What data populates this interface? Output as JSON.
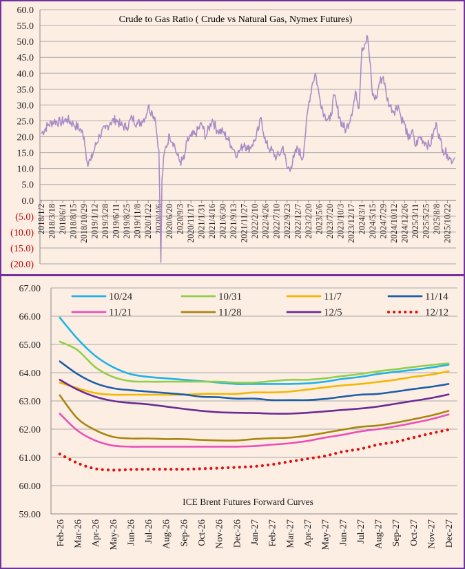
{
  "chart_data": [
    {
      "type": "line",
      "title": "Crude to Gas Ratio ( Crude vs Natural Gas, Nymex Futures)",
      "xlabel": "",
      "ylabel": "",
      "ylim": [
        -20,
        60
      ],
      "y_ticks": [
        "60.0",
        "55.0",
        "50.0",
        "45.0",
        "40.0",
        "35.0",
        "30.0",
        "25.0",
        "20.0",
        "15.0",
        "10.0",
        "5.0",
        "0.0",
        "(5.0)",
        "(10.0)",
        "(15.0)",
        "(20.0)"
      ],
      "x_ticks": [
        "2018/1/2",
        "2018/3/18",
        "2018/6/1",
        "2018/8/15",
        "2018/10/29",
        "2019/1/12",
        "2019/3/28",
        "2019/6/11",
        "2019/8/25",
        "2019/11/8",
        "2020/1/22",
        "2020/4/6",
        "2020/6/20",
        "2020/9/3",
        "2020/11/17",
        "2021/1/31",
        "2021/4/16",
        "2021/6/30",
        "2021/9/13",
        "2021/11/27",
        "2022/2/10",
        "2022/4/26",
        "2022/7/10",
        "2022/9/23",
        "2022/12/7",
        "2023/2/20",
        "2023/5/6",
        "2023/7/20",
        "2023/10/3",
        "2023/12/17",
        "2024/3/1",
        "2024/5/15",
        "2024/7/29",
        "2024/10/12",
        "2024/12/26",
        "2025/3/11",
        "2025/5/25",
        "2025/8/8",
        "2025/10/22"
      ],
      "negative_color": "#c00000",
      "series": [
        {
          "color": "#a98cc6",
          "x": [
            "2018/1/2",
            "2018/2/15",
            "2018/4/1",
            "2018/5/15",
            "2018/7/1",
            "2018/8/15",
            "2018/10/1",
            "2018/10/29",
            "2018/11/20",
            "2018/12/15",
            "2019/1/12",
            "2019/2/15",
            "2019/3/28",
            "2019/5/1",
            "2019/6/11",
            "2019/7/15",
            "2019/8/25",
            "2019/10/1",
            "2019/11/8",
            "2019/12/10",
            "2020/1/10",
            "2020/1/22",
            "2020/2/20",
            "2020/3/10",
            "2020/3/25",
            "2020/4/6",
            "2020/4/20",
            "2020/4/28",
            "2020/5/15",
            "2020/6/20",
            "2020/7/20",
            "2020/8/10",
            "2020/9/3",
            "2020/10/1",
            "2020/10/20",
            "2020/11/17",
            "2020/12/20",
            "2021/1/31",
            "2021/3/1",
            "2021/4/16",
            "2021/5/20",
            "2021/6/30",
            "2021/8/1",
            "2021/9/13",
            "2021/10/10",
            "2021/11/1",
            "2021/11/27",
            "2021/12/20",
            "2022/1/20",
            "2022/2/10",
            "2022/3/10",
            "2022/3/25",
            "2022/4/26",
            "2022/5/30",
            "2022/7/10",
            "2022/8/10",
            "2022/8/25",
            "2022/9/23",
            "2022/10/20",
            "2022/11/10",
            "2022/12/7",
            "2023/1/10",
            "2023/2/1",
            "2023/2/20",
            "2023/3/20",
            "2023/4/10",
            "2023/5/6",
            "2023/6/10",
            "2023/7/20",
            "2023/8/20",
            "2023/9/10",
            "2023/10/3",
            "2023/11/10",
            "2023/12/17",
            "2024/1/20",
            "2024/2/10",
            "2024/3/1",
            "2024/3/20",
            "2024/4/10",
            "2024/4/25",
            "2024/5/15",
            "2024/6/10",
            "2024/7/1",
            "2024/7/29",
            "2024/8/20",
            "2024/9/10",
            "2024/10/12",
            "2024/11/10",
            "2024/12/1",
            "2024/12/26",
            "2025/1/20",
            "2025/2/15",
            "2025/3/11",
            "2025/4/10",
            "2025/5/25",
            "2025/6/20",
            "2025/7/15",
            "2025/8/8",
            "2025/9/1",
            "2025/9/20",
            "2025/10/22",
            "2025/11/10",
            "2025/12/1",
            "2025/12/12"
          ],
          "values": [
            21.0,
            23.5,
            25.0,
            24.5,
            25.5,
            24.0,
            22.5,
            20.0,
            12.0,
            12.5,
            16.5,
            20.5,
            22.5,
            24.5,
            25.5,
            23.5,
            23.0,
            26.0,
            24.0,
            25.0,
            27.0,
            29.5,
            27.5,
            26.0,
            20.0,
            16.0,
            -19.5,
            7.0,
            15.0,
            20.5,
            18.0,
            14.5,
            12.0,
            13.0,
            18.5,
            20.0,
            21.0,
            24.0,
            20.0,
            25.5,
            22.0,
            21.5,
            19.5,
            16.0,
            14.5,
            16.0,
            18.0,
            16.0,
            17.5,
            19.0,
            23.0,
            26.0,
            18.0,
            16.0,
            13.5,
            15.0,
            17.0,
            10.0,
            10.5,
            13.5,
            16.5,
            13.0,
            22.0,
            30.0,
            37.0,
            40.0,
            33.0,
            27.0,
            25.0,
            33.0,
            29.0,
            25.0,
            22.0,
            27.0,
            34.0,
            29.0,
            48.0,
            49.0,
            51.5,
            44.0,
            33.0,
            32.0,
            37.0,
            39.0,
            33.0,
            30.0,
            28.0,
            30.0,
            26.0,
            24.0,
            19.0,
            22.0,
            17.0,
            20.0,
            18.0,
            17.0,
            21.0,
            24.0,
            19.0,
            16.0,
            14.5,
            13.0,
            12.5,
            13.5
          ]
        }
      ]
    },
    {
      "type": "line",
      "title": "ICE Brent Futures Forward Curves",
      "xlabel": "",
      "ylabel": "",
      "ylim": [
        59,
        67
      ],
      "y_ticks": [
        "67.00",
        "66.00",
        "65.00",
        "64.00",
        "63.00",
        "62.00",
        "61.00",
        "60.00",
        "59.00"
      ],
      "categories": [
        "Feb-26",
        "Mar-26",
        "Apr-26",
        "May-26",
        "Jun-26",
        "Jul-26",
        "Aug-26",
        "Sep-26",
        "Oct-26",
        "Nov-26",
        "Dec-26",
        "Jan-27",
        "Feb-27",
        "Mar-27",
        "Apr-27",
        "May-27",
        "Jun-27",
        "Jul-27",
        "Aug-27",
        "Sep-27",
        "Oct-27",
        "Nov-27",
        "Dec-27"
      ],
      "legend_position": "top",
      "series": [
        {
          "name": "10/24",
          "color": "#1fb2e8",
          "style": "solid",
          "values": [
            65.95,
            65.2,
            64.6,
            64.2,
            63.95,
            63.85,
            63.8,
            63.75,
            63.7,
            63.65,
            63.6,
            63.6,
            63.6,
            63.6,
            63.62,
            63.68,
            63.78,
            63.85,
            63.95,
            64.03,
            64.1,
            64.18,
            64.28
          ]
        },
        {
          "name": "10/31",
          "color": "#8fcf4a",
          "style": "solid",
          "values": [
            65.1,
            64.8,
            64.2,
            63.85,
            63.7,
            63.68,
            63.68,
            63.68,
            63.68,
            63.68,
            63.65,
            63.65,
            63.7,
            63.75,
            63.75,
            63.8,
            63.88,
            63.95,
            64.05,
            64.12,
            64.2,
            64.27,
            64.33
          ]
        },
        {
          "name": "11/7",
          "color": "#f2b700",
          "style": "solid",
          "values": [
            63.65,
            63.45,
            63.28,
            63.22,
            63.22,
            63.22,
            63.22,
            63.22,
            63.25,
            63.25,
            63.25,
            63.3,
            63.3,
            63.33,
            63.4,
            63.48,
            63.55,
            63.6,
            63.67,
            63.75,
            63.85,
            63.93,
            64.05
          ]
        },
        {
          "name": "11/14",
          "color": "#1b5fa8",
          "style": "solid",
          "values": [
            64.4,
            63.95,
            63.63,
            63.45,
            63.38,
            63.33,
            63.28,
            63.23,
            63.15,
            63.13,
            63.08,
            63.08,
            63.03,
            63.03,
            63.03,
            63.07,
            63.15,
            63.22,
            63.25,
            63.33,
            63.42,
            63.5,
            63.6
          ]
        },
        {
          "name": "11/21",
          "color": "#ea4fb8",
          "style": "solid",
          "values": [
            62.55,
            61.95,
            61.6,
            61.42,
            61.38,
            61.38,
            61.38,
            61.38,
            61.38,
            61.38,
            61.38,
            61.4,
            61.45,
            61.5,
            61.58,
            61.7,
            61.8,
            61.92,
            62.0,
            62.1,
            62.22,
            62.35,
            62.52
          ]
        },
        {
          "name": "11/28",
          "color": "#a8860e",
          "style": "solid",
          "values": [
            63.2,
            62.38,
            61.97,
            61.73,
            61.67,
            61.67,
            61.65,
            61.65,
            61.62,
            61.6,
            61.6,
            61.65,
            61.68,
            61.7,
            61.77,
            61.87,
            61.98,
            62.08,
            62.13,
            62.23,
            62.35,
            62.48,
            62.65
          ]
        },
        {
          "name": "12/5",
          "color": "#6a2c94",
          "style": "solid",
          "values": [
            63.75,
            63.4,
            63.15,
            63.0,
            62.93,
            62.88,
            62.8,
            62.72,
            62.65,
            62.6,
            62.58,
            62.57,
            62.55,
            62.55,
            62.58,
            62.63,
            62.68,
            62.73,
            62.8,
            62.9,
            63.0,
            63.1,
            63.23
          ]
        },
        {
          "name": "12/12",
          "color": "#e01010",
          "style": "dotted",
          "values": [
            61.12,
            60.8,
            60.6,
            60.55,
            60.57,
            60.58,
            60.58,
            60.58,
            60.6,
            60.62,
            60.65,
            60.68,
            60.75,
            60.85,
            60.95,
            61.05,
            61.2,
            61.3,
            61.45,
            61.55,
            61.7,
            61.85,
            61.98
          ]
        }
      ]
    }
  ]
}
